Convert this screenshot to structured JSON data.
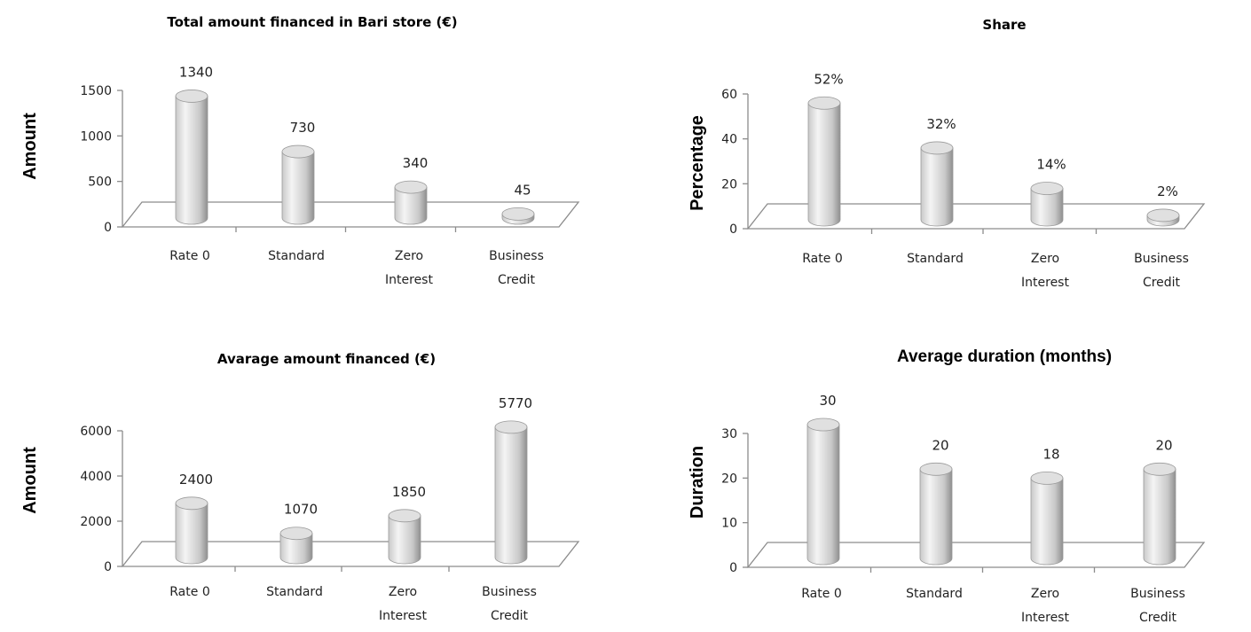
{
  "colors": {
    "bar_light": "#f4f4f4",
    "bar_mid": "#c9c9c9",
    "bar_dark": "#8f8f8f",
    "bar_top": "#e0e0e0",
    "axis": "#8c8c8c"
  },
  "chart_data": [
    {
      "type": "bar",
      "style": "3d-cylinder",
      "title": "Total amount financed in Bari store  (€)",
      "ylabel": "Amount",
      "xlabel": "",
      "categories": [
        [
          "Rate 0"
        ],
        [
          "Standard"
        ],
        [
          "Zero",
          "Interest"
        ],
        [
          "Business",
          "Credit"
        ]
      ],
      "values": [
        1340,
        730,
        340,
        45
      ],
      "data_labels": [
        "1340",
        "730",
        "340",
        "45"
      ],
      "yticks": [
        "0",
        "500",
        "1000",
        "1500"
      ],
      "ylim": [
        0,
        1500
      ],
      "grid": false,
      "legend": "none"
    },
    {
      "type": "bar",
      "style": "3d-cylinder",
      "title": "Share",
      "ylabel": "Percentage",
      "xlabel": "",
      "categories": [
        [
          "Rate 0"
        ],
        [
          "Standard"
        ],
        [
          "Zero",
          "Interest"
        ],
        [
          "Business",
          "Credit"
        ]
      ],
      "values": [
        52,
        32,
        14,
        2
      ],
      "data_labels": [
        "52%",
        "32%",
        "14%",
        "2%"
      ],
      "yticks": [
        "0",
        "20",
        "40",
        "60"
      ],
      "ylim": [
        0,
        60
      ],
      "grid": false,
      "legend": "none"
    },
    {
      "type": "bar",
      "style": "3d-cylinder",
      "title": "Avarage amount financed  (€)",
      "ylabel": "Amount",
      "xlabel": "",
      "categories": [
        [
          "Rate 0"
        ],
        [
          "Standard"
        ],
        [
          "Zero",
          "Interest"
        ],
        [
          "Business",
          "Credit"
        ]
      ],
      "values": [
        2400,
        1070,
        1850,
        5770
      ],
      "data_labels": [
        "2400",
        "1070",
        "1850",
        "5770"
      ],
      "yticks": [
        "0",
        "2000",
        "4000",
        "6000"
      ],
      "ylim": [
        0,
        6000
      ],
      "grid": false,
      "legend": "none"
    },
    {
      "type": "bar",
      "style": "3d-cylinder",
      "title": "Average duration (months)",
      "ylabel": "Duration",
      "xlabel": "",
      "categories": [
        [
          "Rate 0"
        ],
        [
          "Standard"
        ],
        [
          "Zero",
          "Interest"
        ],
        [
          "Business",
          "Credit"
        ]
      ],
      "values": [
        30,
        20,
        18,
        20
      ],
      "data_labels": [
        "30",
        "20",
        "18",
        "20"
      ],
      "yticks": [
        "0",
        "10",
        "20",
        "30"
      ],
      "ylim": [
        0,
        30
      ],
      "grid": false,
      "legend": "none"
    }
  ]
}
